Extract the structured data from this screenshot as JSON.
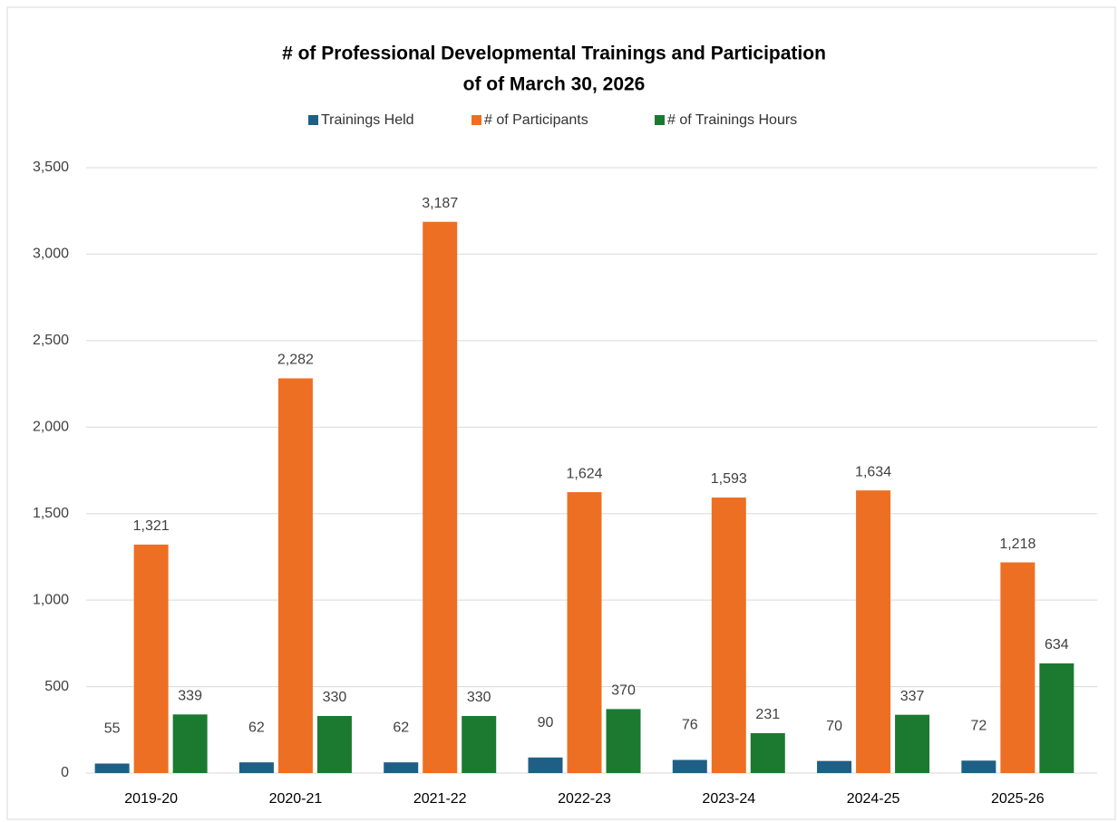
{
  "chart_data": {
    "type": "bar",
    "title": "# of Professional Developmental Trainings and Participation",
    "subtitle": "of of March 30, 2026",
    "categories": [
      "2019-20",
      "2020-21",
      "2021-22",
      "2022-23",
      "2023-24",
      "2024-25",
      "2025-26"
    ],
    "series": [
      {
        "name": "Trainings Held",
        "color": "#1f5f86",
        "values": [
          55,
          62,
          62,
          90,
          76,
          70,
          72
        ]
      },
      {
        "name": "# of Participants",
        "color": "#ed6f23",
        "values": [
          1321,
          2282,
          3187,
          1624,
          1593,
          1634,
          1218
        ],
        "value_labels": [
          "1,321",
          "2,282",
          "3,187",
          "1,624",
          "1,593",
          "1,634",
          "1,218"
        ]
      },
      {
        "name": "# of Trainings Hours",
        "color": "#1b7a30",
        "values": [
          339,
          330,
          330,
          370,
          231,
          337,
          634
        ]
      }
    ],
    "ylim": [
      0,
      3500
    ],
    "yticks": [
      0,
      500,
      {
        "value": 1000,
        "label": "1,000"
      },
      {
        "value": 1500,
        "label": "1,500"
      },
      {
        "value": 2000,
        "label": "2,000"
      },
      {
        "value": 2500,
        "label": "2,500"
      },
      {
        "value": 3000,
        "label": "3,000"
      },
      {
        "value": 3500,
        "label": "3,500"
      }
    ],
    "grid": true,
    "legend": "top"
  }
}
